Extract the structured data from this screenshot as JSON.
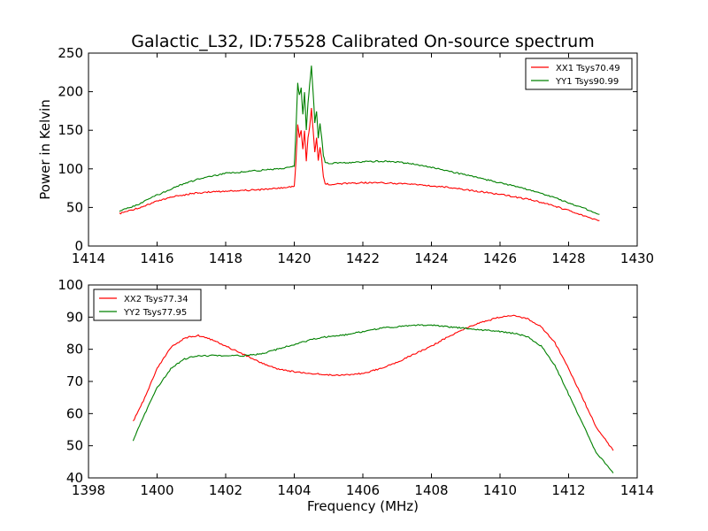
{
  "title": "Galactic_L32, ID:75528 Calibrated On-source spectrum",
  "colors": {
    "xx": "#ff0000",
    "yy": "#008000"
  },
  "chart_data": [
    {
      "type": "line",
      "ylabel": "Power in Kelvin",
      "xlabel": "",
      "xlim": [
        1414,
        1430
      ],
      "ylim": [
        0,
        250
      ],
      "xticks": [
        1414,
        1416,
        1418,
        1420,
        1422,
        1424,
        1426,
        1428,
        1430
      ],
      "yticks": [
        0,
        50,
        100,
        150,
        200,
        250
      ],
      "grid": false,
      "legend_position": "top-right",
      "series": [
        {
          "name": "XX1 Tsys70.49",
          "color": "#ff0000",
          "x": [
            1414.9,
            1415.5,
            1416.0,
            1416.5,
            1417.0,
            1417.5,
            1418.0,
            1418.5,
            1419.0,
            1419.5,
            1419.9,
            1420.0,
            1420.05,
            1420.1,
            1420.15,
            1420.2,
            1420.25,
            1420.3,
            1420.35,
            1420.4,
            1420.45,
            1420.5,
            1420.55,
            1420.6,
            1420.65,
            1420.7,
            1420.75,
            1420.8,
            1420.85,
            1420.9,
            1421.0,
            1421.5,
            1422.0,
            1422.5,
            1423.0,
            1423.5,
            1424.0,
            1424.5,
            1425.0,
            1425.5,
            1426.0,
            1426.5,
            1427.0,
            1427.5,
            1428.0,
            1428.5,
            1428.9
          ],
          "y": [
            42,
            50,
            58,
            64,
            68,
            70,
            71,
            72,
            73,
            75,
            77,
            78,
            110,
            158,
            140,
            150,
            125,
            150,
            110,
            140,
            155,
            178,
            150,
            122,
            140,
            110,
            128,
            112,
            90,
            81,
            80,
            81,
            82,
            82,
            81,
            80,
            78,
            76,
            73,
            70,
            67,
            63,
            59,
            53,
            46,
            38,
            33
          ]
        },
        {
          "name": "YY1 Tsys90.99",
          "color": "#008000",
          "x": [
            1414.9,
            1415.5,
            1416.0,
            1416.5,
            1417.0,
            1417.5,
            1418.0,
            1418.5,
            1419.0,
            1419.5,
            1419.9,
            1420.0,
            1420.05,
            1420.1,
            1420.15,
            1420.2,
            1420.25,
            1420.3,
            1420.35,
            1420.4,
            1420.45,
            1420.5,
            1420.55,
            1420.6,
            1420.65,
            1420.7,
            1420.75,
            1420.8,
            1420.85,
            1420.9,
            1421.0,
            1421.5,
            1422.0,
            1422.5,
            1423.0,
            1423.5,
            1424.0,
            1424.5,
            1425.0,
            1425.5,
            1426.0,
            1426.5,
            1427.0,
            1427.5,
            1428.0,
            1428.5,
            1428.9
          ],
          "y": [
            45,
            55,
            66,
            76,
            84,
            90,
            94,
            96,
            98,
            100,
            102,
            104,
            150,
            211,
            195,
            205,
            170,
            200,
            150,
            185,
            210,
            233,
            200,
            160,
            175,
            140,
            158,
            140,
            118,
            108,
            107,
            108,
            109,
            110,
            109,
            106,
            102,
            97,
            92,
            87,
            82,
            77,
            71,
            64,
            56,
            48,
            41
          ]
        }
      ]
    },
    {
      "type": "line",
      "xlabel": "Frequency (MHz)",
      "ylabel": "",
      "xlim": [
        1398,
        1414
      ],
      "ylim": [
        40,
        100
      ],
      "xticks": [
        1398,
        1400,
        1402,
        1404,
        1406,
        1408,
        1410,
        1412,
        1414
      ],
      "yticks": [
        40,
        50,
        60,
        70,
        80,
        90,
        100
      ],
      "grid": false,
      "legend_position": "top-left",
      "series": [
        {
          "name": "XX2 Tsys77.34",
          "color": "#ff0000",
          "x": [
            1399.3,
            1399.6,
            1400.0,
            1400.4,
            1400.8,
            1401.2,
            1401.6,
            1402.0,
            1402.5,
            1403.0,
            1403.5,
            1404.0,
            1404.5,
            1405.0,
            1405.5,
            1406.0,
            1406.5,
            1407.0,
            1407.5,
            1408.0,
            1408.5,
            1409.0,
            1409.5,
            1410.0,
            1410.4,
            1410.8,
            1411.2,
            1411.6,
            1412.0,
            1412.4,
            1412.8,
            1413.3
          ],
          "y": [
            57.5,
            64,
            74,
            80.5,
            83.5,
            84.3,
            83,
            81,
            78.5,
            76,
            74,
            73,
            72.5,
            72,
            72,
            72.5,
            74,
            76,
            78.5,
            81,
            84,
            86.5,
            88.5,
            90,
            90.5,
            89.5,
            87,
            82,
            74,
            65,
            56,
            48.5
          ]
        },
        {
          "name": "YY2 Tsys77.95",
          "color": "#008000",
          "x": [
            1399.3,
            1399.6,
            1400.0,
            1400.4,
            1400.8,
            1401.2,
            1401.6,
            1402.0,
            1402.5,
            1403.0,
            1403.5,
            1404.0,
            1404.5,
            1405.0,
            1405.5,
            1406.0,
            1406.5,
            1407.0,
            1407.5,
            1408.0,
            1408.5,
            1409.0,
            1409.5,
            1410.0,
            1410.4,
            1410.8,
            1411.2,
            1411.6,
            1412.0,
            1412.4,
            1412.8,
            1413.3
          ],
          "y": [
            51.5,
            59,
            68,
            74,
            77,
            78,
            78,
            78,
            78,
            78.5,
            80,
            81.5,
            83,
            84,
            84.5,
            85.5,
            86.5,
            87,
            87.5,
            87.5,
            87,
            86.5,
            86,
            85.5,
            85,
            84,
            81,
            75,
            66,
            57,
            48,
            41.5
          ]
        }
      ]
    }
  ]
}
